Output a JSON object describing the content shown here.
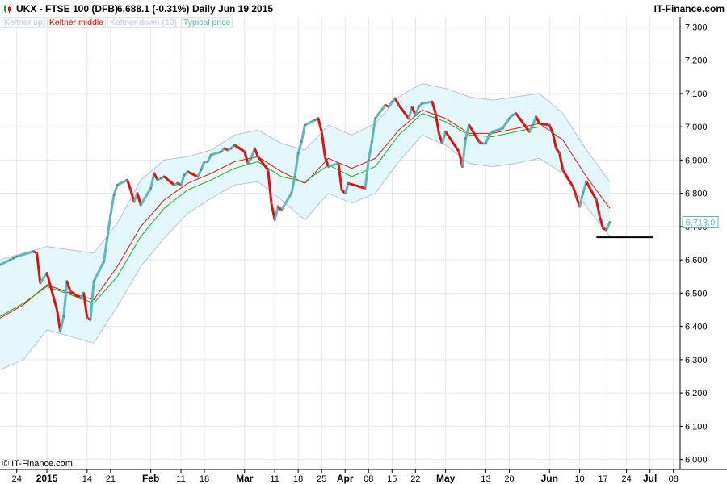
{
  "header": {
    "symbol": "UKX - FTSE 100 (DFB)",
    "price": "6,688.1 (-0.31%)",
    "period_date": "Daily  Jun 19 2015",
    "brand": "IT-Finance.com"
  },
  "footer": {
    "copyright": "© IT-Finance.com"
  },
  "colors": {
    "keltner_up": "#b9c0e6",
    "keltner_middle": "#dd1111",
    "keltner_down": "#b9c0e6",
    "typical_price": "#5fb8b8",
    "price_up": "#5fb8b8",
    "price_down": "#e01010",
    "band_fill": "#e4f7fb",
    "ema_green": "#22aa22"
  },
  "chart_data": {
    "type": "line",
    "title": "UKX - FTSE 100 (DFB)",
    "legend": [
      {
        "label": "Keltner up",
        "color": "#b9c0e6"
      },
      {
        "label": "Keltner middle",
        "color": "#dd1111"
      },
      {
        "label": "Keltner down (10)",
        "color": "#b9c0e6"
      },
      {
        "label": "Typical price",
        "color": "#5fb8b8"
      }
    ],
    "ylim": [
      5970,
      7330
    ],
    "y_ticks": [
      6000,
      6100,
      6200,
      6300,
      6400,
      6500,
      6600,
      6700,
      6800,
      6900,
      7000,
      7100,
      7200,
      7300
    ],
    "y_tick_labels": [
      "6,000",
      "6,100",
      "6,200",
      "6,300",
      "6,400",
      "6,500",
      "6,600",
      "6,700",
      "6,800",
      "6,900",
      "7,000",
      "7,100",
      "7,200",
      "7,300"
    ],
    "last_value_label": "6,713.0",
    "last_value": 6713,
    "support_line": {
      "value": 6668,
      "from": "2015-06-15",
      "to": "2015-07-02"
    },
    "x_ticks": [
      {
        "label": "24",
        "date": "2014-12-24",
        "bold": false
      },
      {
        "label": "2015",
        "date": "2015-01-02",
        "bold": true
      },
      {
        "label": "14",
        "date": "2015-01-14",
        "bold": false
      },
      {
        "label": "21",
        "date": "2015-01-21",
        "bold": false
      },
      {
        "label": "Feb",
        "date": "2015-02-02",
        "bold": true
      },
      {
        "label": "11",
        "date": "2015-02-11",
        "bold": false
      },
      {
        "label": "18",
        "date": "2015-02-18",
        "bold": false
      },
      {
        "label": "Mar",
        "date": "2015-03-02",
        "bold": true
      },
      {
        "label": "11",
        "date": "2015-03-11",
        "bold": false
      },
      {
        "label": "18",
        "date": "2015-03-18",
        "bold": false
      },
      {
        "label": "25",
        "date": "2015-03-25",
        "bold": false
      },
      {
        "label": "Apr",
        "date": "2015-04-01",
        "bold": true
      },
      {
        "label": "08",
        "date": "2015-04-08",
        "bold": false
      },
      {
        "label": "15",
        "date": "2015-04-15",
        "bold": false
      },
      {
        "label": "22",
        "date": "2015-04-22",
        "bold": false
      },
      {
        "label": "May",
        "date": "2015-05-01",
        "bold": true
      },
      {
        "label": "13",
        "date": "2015-05-13",
        "bold": false
      },
      {
        "label": "20",
        "date": "2015-05-20",
        "bold": false
      },
      {
        "label": "Jun",
        "date": "2015-06-01",
        "bold": true
      },
      {
        "label": "10",
        "date": "2015-06-10",
        "bold": false
      },
      {
        "label": "17",
        "date": "2015-06-17",
        "bold": false
      },
      {
        "label": "24",
        "date": "2015-06-24",
        "bold": false
      },
      {
        "label": "Jul",
        "date": "2015-07-01",
        "bold": true
      },
      {
        "label": "08",
        "date": "2015-07-08",
        "bold": false
      }
    ],
    "x_range": [
      "2014-12-19",
      "2015-07-10"
    ],
    "series": [
      {
        "name": "Typical price",
        "points": [
          [
            "2014-12-19",
            6585
          ],
          [
            "2014-12-22",
            6600
          ],
          [
            "2014-12-23",
            6605
          ],
          [
            "2014-12-24",
            6610
          ],
          [
            "2014-12-29",
            6625
          ],
          [
            "2014-12-30",
            6620
          ],
          [
            "2014-12-31",
            6530
          ],
          [
            "2015-01-02",
            6560
          ],
          [
            "2015-01-05",
            6450
          ],
          [
            "2015-01-06",
            6385
          ],
          [
            "2015-01-07",
            6430
          ],
          [
            "2015-01-08",
            6535
          ],
          [
            "2015-01-09",
            6505
          ],
          [
            "2015-01-12",
            6485
          ],
          [
            "2015-01-13",
            6500
          ],
          [
            "2015-01-14",
            6425
          ],
          [
            "2015-01-15",
            6420
          ],
          [
            "2015-01-16",
            6535
          ],
          [
            "2015-01-19",
            6595
          ],
          [
            "2015-01-20",
            6665
          ],
          [
            "2015-01-21",
            6735
          ],
          [
            "2015-01-22",
            6795
          ],
          [
            "2015-01-23",
            6825
          ],
          [
            "2015-01-26",
            6840
          ],
          [
            "2015-01-27",
            6810
          ],
          [
            "2015-01-28",
            6775
          ],
          [
            "2015-01-29",
            6800
          ],
          [
            "2015-01-30",
            6765
          ],
          [
            "2015-02-02",
            6815
          ],
          [
            "2015-02-03",
            6860
          ],
          [
            "2015-02-04",
            6840
          ],
          [
            "2015-02-05",
            6845
          ],
          [
            "2015-02-06",
            6850
          ],
          [
            "2015-02-09",
            6825
          ],
          [
            "2015-02-10",
            6830
          ],
          [
            "2015-02-11",
            6825
          ],
          [
            "2015-02-12",
            6855
          ],
          [
            "2015-02-13",
            6865
          ],
          [
            "2015-02-16",
            6850
          ],
          [
            "2015-02-17",
            6870
          ],
          [
            "2015-02-18",
            6895
          ],
          [
            "2015-02-19",
            6895
          ],
          [
            "2015-02-20",
            6915
          ],
          [
            "2015-02-23",
            6925
          ],
          [
            "2015-02-24",
            6935
          ],
          [
            "2015-02-25",
            6930
          ],
          [
            "2015-02-26",
            6935
          ],
          [
            "2015-02-27",
            6945
          ],
          [
            "2015-03-02",
            6925
          ],
          [
            "2015-03-03",
            6890
          ],
          [
            "2015-03-04",
            6905
          ],
          [
            "2015-03-05",
            6935
          ],
          [
            "2015-03-06",
            6910
          ],
          [
            "2015-03-09",
            6870
          ],
          [
            "2015-03-10",
            6770
          ],
          [
            "2015-03-11",
            6720
          ],
          [
            "2015-03-12",
            6760
          ],
          [
            "2015-03-13",
            6750
          ],
          [
            "2015-03-16",
            6800
          ],
          [
            "2015-03-17",
            6850
          ],
          [
            "2015-03-18",
            6920
          ],
          [
            "2015-03-19",
            6955
          ],
          [
            "2015-03-20",
            7005
          ],
          [
            "2015-03-23",
            7020
          ],
          [
            "2015-03-24",
            7025
          ],
          [
            "2015-03-25",
            6985
          ],
          [
            "2015-03-26",
            6910
          ],
          [
            "2015-03-27",
            6880
          ],
          [
            "2015-03-30",
            6890
          ],
          [
            "2015-03-31",
            6810
          ],
          [
            "2015-04-01",
            6800
          ],
          [
            "2015-04-02",
            6830
          ],
          [
            "2015-04-07",
            6815
          ],
          [
            "2015-04-08",
            6900
          ],
          [
            "2015-04-09",
            6955
          ],
          [
            "2015-04-10",
            7025
          ],
          [
            "2015-04-13",
            7065
          ],
          [
            "2015-04-14",
            7060
          ],
          [
            "2015-04-15",
            7075
          ],
          [
            "2015-04-16",
            7085
          ],
          [
            "2015-04-17",
            7065
          ],
          [
            "2015-04-20",
            7025
          ],
          [
            "2015-04-21",
            7060
          ],
          [
            "2015-04-22",
            7035
          ],
          [
            "2015-04-23",
            7060
          ],
          [
            "2015-04-24",
            7070
          ],
          [
            "2015-04-27",
            7075
          ],
          [
            "2015-04-28",
            7040
          ],
          [
            "2015-04-29",
            6980
          ],
          [
            "2015-04-30",
            6950
          ],
          [
            "2015-05-01",
            6985
          ],
          [
            "2015-05-05",
            6925
          ],
          [
            "2015-05-06",
            6880
          ],
          [
            "2015-05-07",
            6965
          ],
          [
            "2015-05-08",
            7005
          ],
          [
            "2015-05-11",
            6955
          ],
          [
            "2015-05-12",
            6950
          ],
          [
            "2015-05-13",
            6950
          ],
          [
            "2015-05-14",
            6975
          ],
          [
            "2015-05-15",
            6985
          ],
          [
            "2015-05-18",
            6995
          ],
          [
            "2015-05-19",
            7010
          ],
          [
            "2015-05-20",
            7025
          ],
          [
            "2015-05-21",
            7035
          ],
          [
            "2015-05-22",
            7040
          ],
          [
            "2015-05-26",
            6985
          ],
          [
            "2015-05-27",
            7005
          ],
          [
            "2015-05-28",
            7030
          ],
          [
            "2015-05-29",
            7010
          ],
          [
            "2015-06-01",
            7005
          ],
          [
            "2015-06-02",
            6980
          ],
          [
            "2015-06-03",
            6935
          ],
          [
            "2015-06-04",
            6920
          ],
          [
            "2015-06-05",
            6870
          ],
          [
            "2015-06-08",
            6820
          ],
          [
            "2015-06-09",
            6790
          ],
          [
            "2015-06-10",
            6760
          ],
          [
            "2015-06-11",
            6800
          ],
          [
            "2015-06-12",
            6835
          ],
          [
            "2015-06-15",
            6780
          ],
          [
            "2015-06-16",
            6730
          ],
          [
            "2015-06-17",
            6695
          ],
          [
            "2015-06-18",
            6690
          ],
          [
            "2015-06-19",
            6713
          ]
        ]
      },
      {
        "name": "Keltner middle",
        "points": [
          [
            "2014-12-19",
            6425
          ],
          [
            "2014-12-26",
            6465
          ],
          [
            "2015-01-02",
            6525
          ],
          [
            "2015-01-09",
            6500
          ],
          [
            "2015-01-16",
            6480
          ],
          [
            "2015-01-23",
            6580
          ],
          [
            "2015-01-30",
            6700
          ],
          [
            "2015-02-06",
            6780
          ],
          [
            "2015-02-13",
            6830
          ],
          [
            "2015-02-20",
            6860
          ],
          [
            "2015-02-27",
            6895
          ],
          [
            "2015-03-06",
            6910
          ],
          [
            "2015-03-13",
            6865
          ],
          [
            "2015-03-20",
            6830
          ],
          [
            "2015-03-27",
            6905
          ],
          [
            "2015-04-03",
            6875
          ],
          [
            "2015-04-10",
            6905
          ],
          [
            "2015-04-17",
            6990
          ],
          [
            "2015-04-24",
            7050
          ],
          [
            "2015-05-01",
            7025
          ],
          [
            "2015-05-08",
            6980
          ],
          [
            "2015-05-15",
            6980
          ],
          [
            "2015-05-22",
            6995
          ],
          [
            "2015-05-29",
            7010
          ],
          [
            "2015-06-05",
            6960
          ],
          [
            "2015-06-12",
            6850
          ],
          [
            "2015-06-19",
            6755
          ]
        ]
      },
      {
        "name": "Keltner green",
        "points": [
          [
            "2014-12-19",
            6430
          ],
          [
            "2014-12-26",
            6470
          ],
          [
            "2015-01-02",
            6520
          ],
          [
            "2015-01-09",
            6495
          ],
          [
            "2015-01-16",
            6470
          ],
          [
            "2015-01-23",
            6550
          ],
          [
            "2015-01-30",
            6670
          ],
          [
            "2015-02-06",
            6755
          ],
          [
            "2015-02-13",
            6810
          ],
          [
            "2015-02-20",
            6840
          ],
          [
            "2015-02-27",
            6875
          ],
          [
            "2015-03-06",
            6895
          ],
          [
            "2015-03-13",
            6850
          ],
          [
            "2015-03-20",
            6835
          ],
          [
            "2015-03-27",
            6885
          ],
          [
            "2015-04-03",
            6850
          ],
          [
            "2015-04-10",
            6880
          ],
          [
            "2015-04-17",
            6975
          ],
          [
            "2015-04-24",
            7040
          ],
          [
            "2015-05-01",
            7015
          ],
          [
            "2015-05-08",
            6975
          ],
          [
            "2015-05-15",
            6970
          ],
          [
            "2015-05-22",
            6985
          ],
          [
            "2015-05-29",
            7000
          ]
        ]
      },
      {
        "name": "Keltner up",
        "points": [
          [
            "2014-12-19",
            6600
          ],
          [
            "2014-12-26",
            6620
          ],
          [
            "2015-01-02",
            6640
          ],
          [
            "2015-01-09",
            6630
          ],
          [
            "2015-01-16",
            6620
          ],
          [
            "2015-01-23",
            6710
          ],
          [
            "2015-01-30",
            6840
          ],
          [
            "2015-02-06",
            6900
          ],
          [
            "2015-02-13",
            6910
          ],
          [
            "2015-02-20",
            6930
          ],
          [
            "2015-02-27",
            6975
          ],
          [
            "2015-03-06",
            6990
          ],
          [
            "2015-03-13",
            6950
          ],
          [
            "2015-03-20",
            6930
          ],
          [
            "2015-03-27",
            7005
          ],
          [
            "2015-04-03",
            6975
          ],
          [
            "2015-04-10",
            7010
          ],
          [
            "2015-04-17",
            7090
          ],
          [
            "2015-04-24",
            7130
          ],
          [
            "2015-05-01",
            7115
          ],
          [
            "2015-05-08",
            7090
          ],
          [
            "2015-05-15",
            7080
          ],
          [
            "2015-05-22",
            7090
          ],
          [
            "2015-05-29",
            7100
          ],
          [
            "2015-06-05",
            7040
          ],
          [
            "2015-06-12",
            6930
          ],
          [
            "2015-06-19",
            6835
          ]
        ]
      },
      {
        "name": "Keltner down (10)",
        "points": [
          [
            "2014-12-19",
            6270
          ],
          [
            "2014-12-26",
            6300
          ],
          [
            "2015-01-02",
            6390
          ],
          [
            "2015-01-09",
            6370
          ],
          [
            "2015-01-16",
            6350
          ],
          [
            "2015-01-23",
            6460
          ],
          [
            "2015-01-30",
            6580
          ],
          [
            "2015-02-06",
            6665
          ],
          [
            "2015-02-13",
            6740
          ],
          [
            "2015-02-20",
            6785
          ],
          [
            "2015-02-27",
            6825
          ],
          [
            "2015-03-06",
            6835
          ],
          [
            "2015-03-13",
            6780
          ],
          [
            "2015-03-20",
            6720
          ],
          [
            "2015-03-27",
            6800
          ],
          [
            "2015-04-03",
            6770
          ],
          [
            "2015-04-10",
            6800
          ],
          [
            "2015-04-17",
            6895
          ],
          [
            "2015-04-24",
            6975
          ],
          [
            "2015-05-01",
            6945
          ],
          [
            "2015-05-08",
            6890
          ],
          [
            "2015-05-15",
            6880
          ],
          [
            "2015-05-22",
            6890
          ],
          [
            "2015-05-29",
            6905
          ],
          [
            "2015-06-05",
            6860
          ],
          [
            "2015-06-12",
            6760
          ],
          [
            "2015-06-19",
            6670
          ]
        ]
      }
    ]
  }
}
